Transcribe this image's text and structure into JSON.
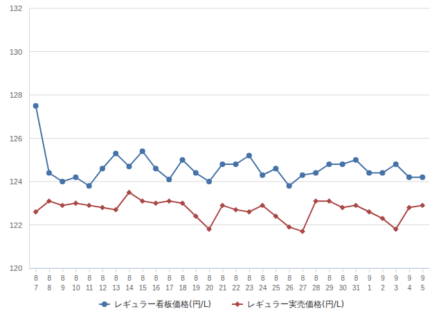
{
  "chart_data": {
    "type": "line",
    "categories": [
      [
        "8",
        "7"
      ],
      [
        "8",
        "8"
      ],
      [
        "8",
        "9"
      ],
      [
        "8",
        "10"
      ],
      [
        "8",
        "11"
      ],
      [
        "8",
        "12"
      ],
      [
        "8",
        "13"
      ],
      [
        "8",
        "14"
      ],
      [
        "8",
        "15"
      ],
      [
        "8",
        "16"
      ],
      [
        "8",
        "17"
      ],
      [
        "8",
        "18"
      ],
      [
        "8",
        "19"
      ],
      [
        "8",
        "20"
      ],
      [
        "8",
        "21"
      ],
      [
        "8",
        "22"
      ],
      [
        "8",
        "23"
      ],
      [
        "8",
        "24"
      ],
      [
        "8",
        "25"
      ],
      [
        "8",
        "26"
      ],
      [
        "8",
        "27"
      ],
      [
        "8",
        "28"
      ],
      [
        "8",
        "29"
      ],
      [
        "8",
        "30"
      ],
      [
        "8",
        "31"
      ],
      [
        "9",
        "1"
      ],
      [
        "9",
        "2"
      ],
      [
        "9",
        "3"
      ],
      [
        "9",
        "4"
      ],
      [
        "9",
        "5"
      ]
    ],
    "series": [
      {
        "name": "レギュラー看板価格(円/L)",
        "color": "#4572a7",
        "marker": "circle",
        "values": [
          127.5,
          124.4,
          124.0,
          124.2,
          123.8,
          124.6,
          125.3,
          124.7,
          125.4,
          124.6,
          124.1,
          125.0,
          124.4,
          124.0,
          124.8,
          124.8,
          125.2,
          124.3,
          124.6,
          123.8,
          124.3,
          124.4,
          124.8,
          124.8,
          125.0,
          124.4,
          124.4,
          124.8,
          124.2,
          124.2
        ]
      },
      {
        "name": "レギュラー実売価格(円/L)",
        "color": "#aa4643",
        "marker": "diamond",
        "values": [
          122.6,
          123.1,
          122.9,
          123.0,
          122.9,
          122.8,
          122.7,
          123.5,
          123.1,
          123.0,
          123.1,
          123.0,
          122.4,
          121.8,
          122.9,
          122.7,
          122.6,
          122.9,
          122.4,
          121.9,
          121.7,
          123.1,
          123.1,
          122.8,
          122.9,
          122.6,
          122.3,
          121.8,
          122.8,
          122.9
        ]
      }
    ],
    "ylim": [
      120,
      132
    ],
    "yticks": [
      120,
      122,
      124,
      126,
      128,
      130,
      132
    ],
    "grid": true,
    "legend": "bottom"
  }
}
